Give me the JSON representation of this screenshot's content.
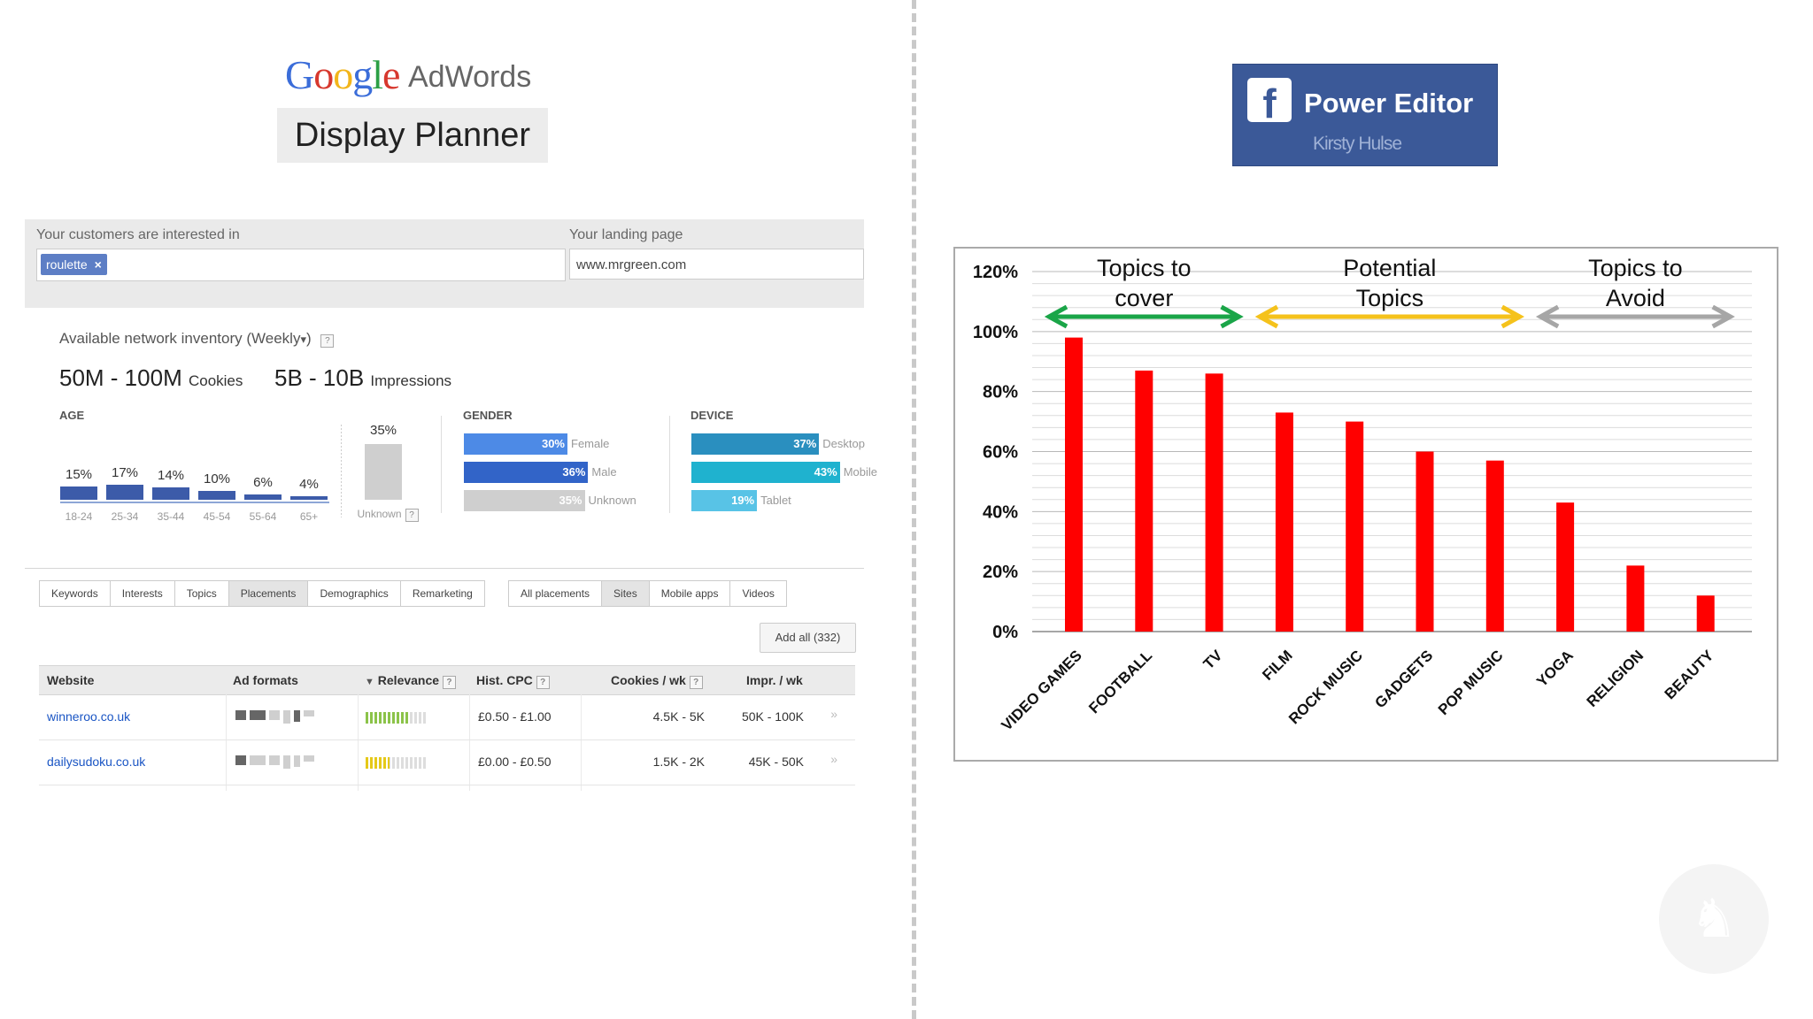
{
  "left": {
    "logo": {
      "google_letters": [
        "G",
        "o",
        "o",
        "g",
        "l",
        "e"
      ],
      "google_colors": [
        "#3b6dd9",
        "#d7382e",
        "#f2b51b",
        "#3b6dd9",
        "#2b9f45",
        "#d7382e"
      ],
      "adwords": "AdWords",
      "subtitle": "Display Planner"
    },
    "search": {
      "interest_label": "Your customers are interested in",
      "interest_chip": "roulette",
      "chip_close": "×",
      "landing_label": "Your landing page",
      "landing_value": "www.mrgreen.com"
    },
    "inventory": {
      "label": "Available network inventory (Weekly",
      "dropdown": "▾",
      "label_end": ")",
      "help": "?",
      "cookies_range": "50M - 100M",
      "cookies_unit": "Cookies",
      "impressions_range": "5B - 10B",
      "impressions_unit": "Impressions"
    },
    "age": {
      "title": "AGE",
      "groups": [
        {
          "label": "18-24",
          "pct": "15%",
          "value": 15
        },
        {
          "label": "25-34",
          "pct": "17%",
          "value": 17
        },
        {
          "label": "35-44",
          "pct": "14%",
          "value": 14
        },
        {
          "label": "45-54",
          "pct": "10%",
          "value": 10
        },
        {
          "label": "55-64",
          "pct": "6%",
          "value": 6
        },
        {
          "label": "65+",
          "pct": "4%",
          "value": 4
        }
      ],
      "unknown": {
        "label": "Unknown",
        "pct": "35%",
        "value": 35
      }
    },
    "gender": {
      "title": "GENDER",
      "bars": [
        {
          "label": "Female",
          "pct": "30%",
          "value": 30,
          "color": "#4d8ae6"
        },
        {
          "label": "Male",
          "pct": "36%",
          "value": 36,
          "color": "#3264c8"
        },
        {
          "label": "Unknown",
          "pct": "35%",
          "value": 35,
          "color": "#cfcfcf"
        }
      ]
    },
    "device": {
      "title": "DEVICE",
      "bars": [
        {
          "label": "Desktop",
          "pct": "37%",
          "value": 37,
          "color": "#2a8fbf"
        },
        {
          "label": "Mobile",
          "pct": "43%",
          "value": 43,
          "color": "#1fb2cf"
        },
        {
          "label": "Tablet",
          "pct": "19%",
          "value": 19,
          "color": "#58c3e6"
        }
      ]
    },
    "tabs": [
      "Keywords",
      "Interests",
      "Topics",
      "Placements",
      "Demographics",
      "Remarketing"
    ],
    "active_tab": "Placements",
    "subtabs": [
      "All placements",
      "Sites",
      "Mobile apps",
      "Videos"
    ],
    "active_subtab": "Sites",
    "add_all": "Add all (332)",
    "table": {
      "headers": [
        "Website",
        "Ad formats",
        "Relevance",
        "Hist. CPC",
        "Cookies / wk",
        "Impr. / wk"
      ],
      "sort_icon": "▼",
      "rows": [
        {
          "website": "winneroo.co.uk",
          "relevance": 0.7,
          "relevance_color": "#8cc34a",
          "cpc": "£0.50 - £1.00",
          "cookies": "4.5K - 5K",
          "impr": "50K - 100K"
        },
        {
          "website": "dailysudoku.co.uk",
          "relevance": 0.4,
          "relevance_color": "#e5c919",
          "cpc": "£0.00 - £0.50",
          "cookies": "1.5K - 2K",
          "impr": "45K - 50K"
        }
      ],
      "row_arrow": "»"
    }
  },
  "right": {
    "facebook": {
      "icon_letter": "f",
      "title": "Power Editor",
      "subtitle": "Kirsty Hulse"
    },
    "watermark_icon": "unicorn-icon"
  },
  "chart_data": {
    "type": "bar",
    "categories": [
      "VIDEO GAMES",
      "FOOTBALL",
      "TV",
      "FILM",
      "ROCK MUSIC",
      "GADGETS",
      "POP MUSIC",
      "YOGA",
      "RELIGION",
      "BEAUTY"
    ],
    "values": [
      98,
      87,
      86,
      73,
      70,
      60,
      57,
      43,
      22,
      12
    ],
    "bar_color": "#ff0000",
    "ylim": [
      0,
      120
    ],
    "yticks": [
      "0%",
      "20%",
      "40%",
      "60%",
      "80%",
      "100%",
      "120%"
    ],
    "grid": true,
    "annotations": [
      {
        "lines": [
          "Topics to",
          "cover"
        ],
        "color": "#1aa548",
        "from_category": 0,
        "to_category": 2
      },
      {
        "lines": [
          "Potential",
          "Topics"
        ],
        "color": "#f5c21b",
        "from_category": 3,
        "to_category": 6
      },
      {
        "lines": [
          "Topics to",
          "Avoid"
        ],
        "color": "#a6a6a6",
        "from_category": 7,
        "to_category": 9
      }
    ]
  }
}
